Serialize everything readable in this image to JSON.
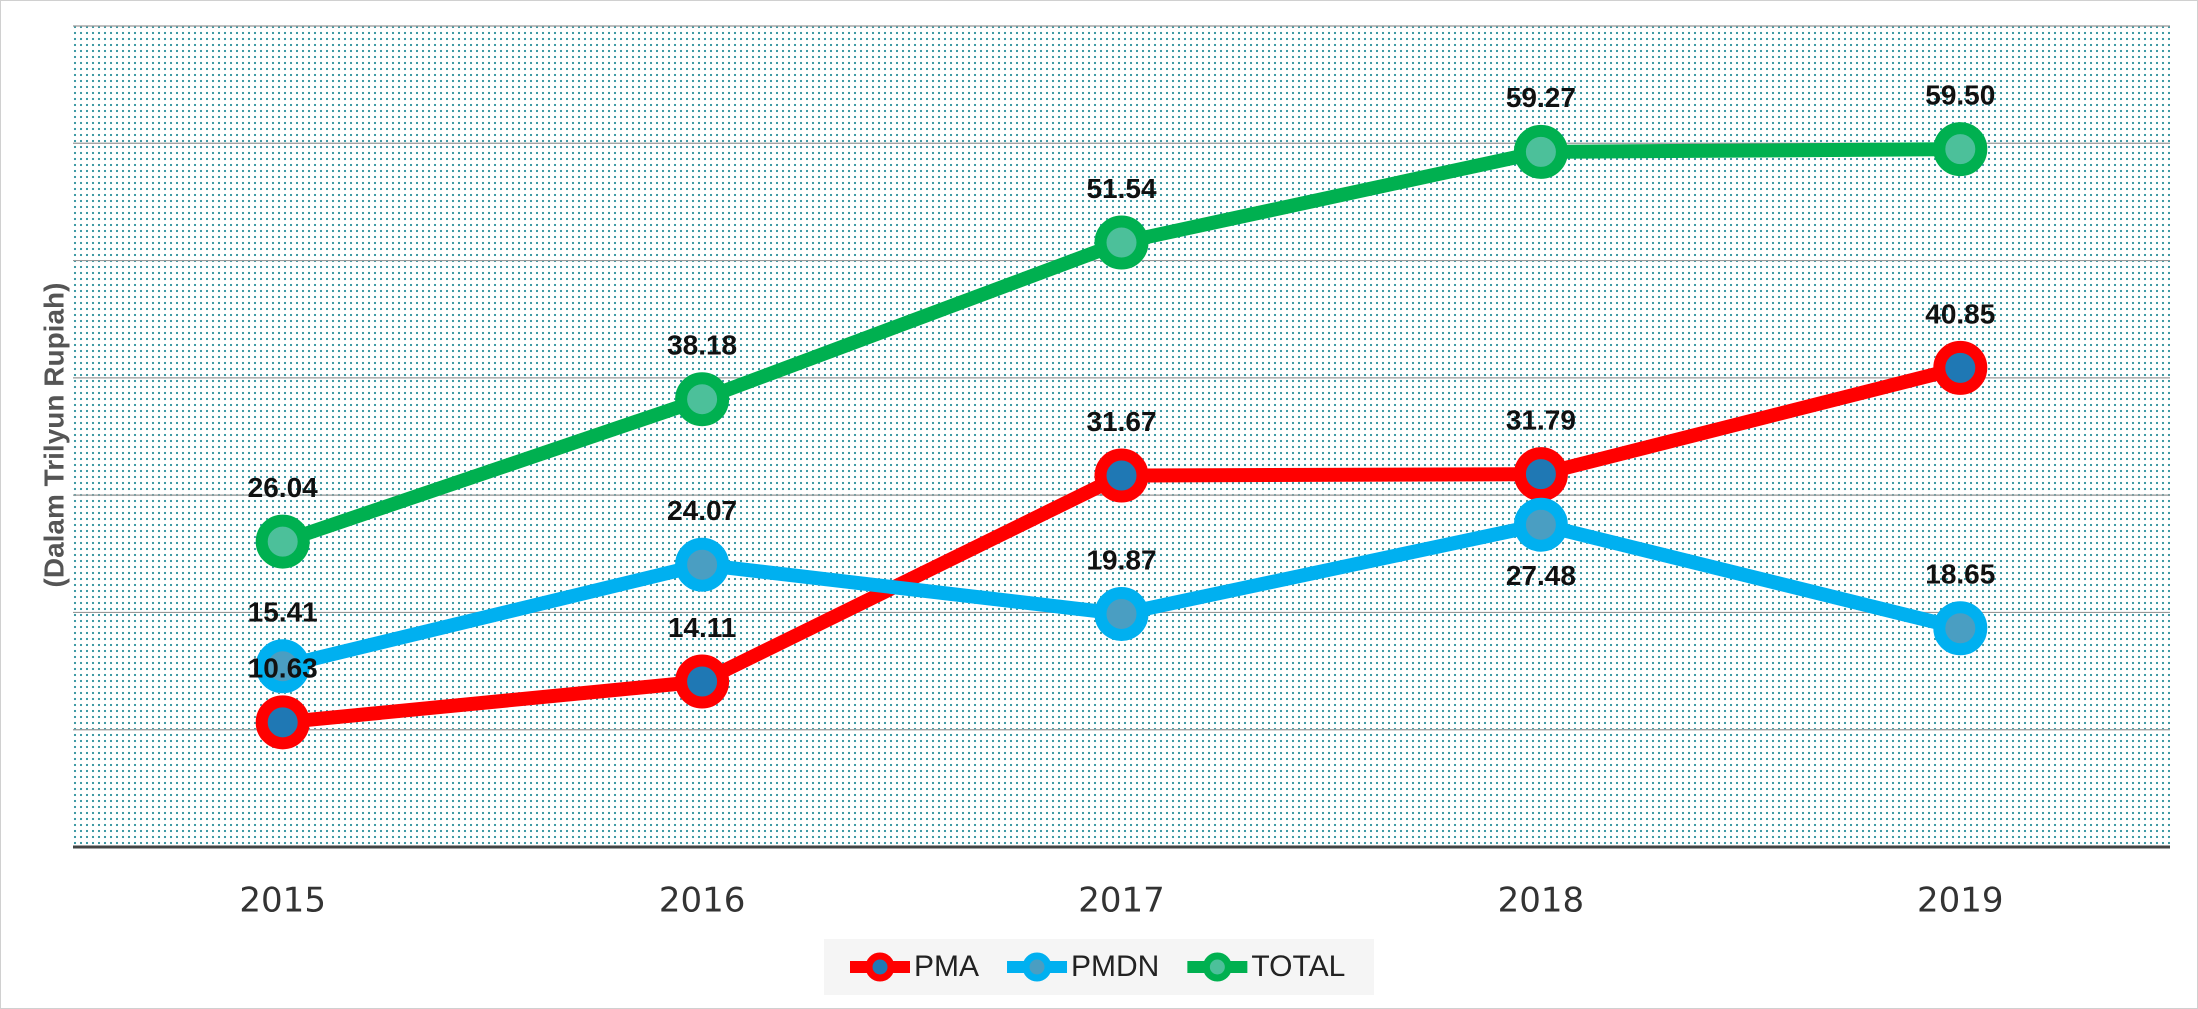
{
  "chart_data": {
    "type": "line",
    "y_axis_label": "(Dalam Trilyun Rupiah)",
    "categories": [
      "2015",
      "2016",
      "2017",
      "2018",
      "2019"
    ],
    "series": [
      {
        "name": "PMA",
        "color": "#ff0000",
        "marker_color": "#1f78b4",
        "values": [
          10.63,
          14.11,
          31.67,
          31.79,
          40.85
        ]
      },
      {
        "name": "PMDN",
        "color": "#00b0f0",
        "marker_color": "#4a9ec2",
        "values": [
          15.41,
          24.07,
          19.87,
          27.48,
          18.65
        ]
      },
      {
        "name": "TOTAL",
        "color": "#00b050",
        "marker_color": "#4cc09a",
        "values": [
          26.04,
          38.18,
          51.54,
          59.27,
          59.5
        ],
        "value_labels": [
          "26.04",
          "38.18",
          "51.54",
          "59.27",
          "59.50"
        ]
      }
    ],
    "ylim": [
      0,
      70
    ],
    "yticks": [
      0,
      10,
      20,
      30,
      40,
      50,
      60,
      70
    ],
    "grid": true
  }
}
